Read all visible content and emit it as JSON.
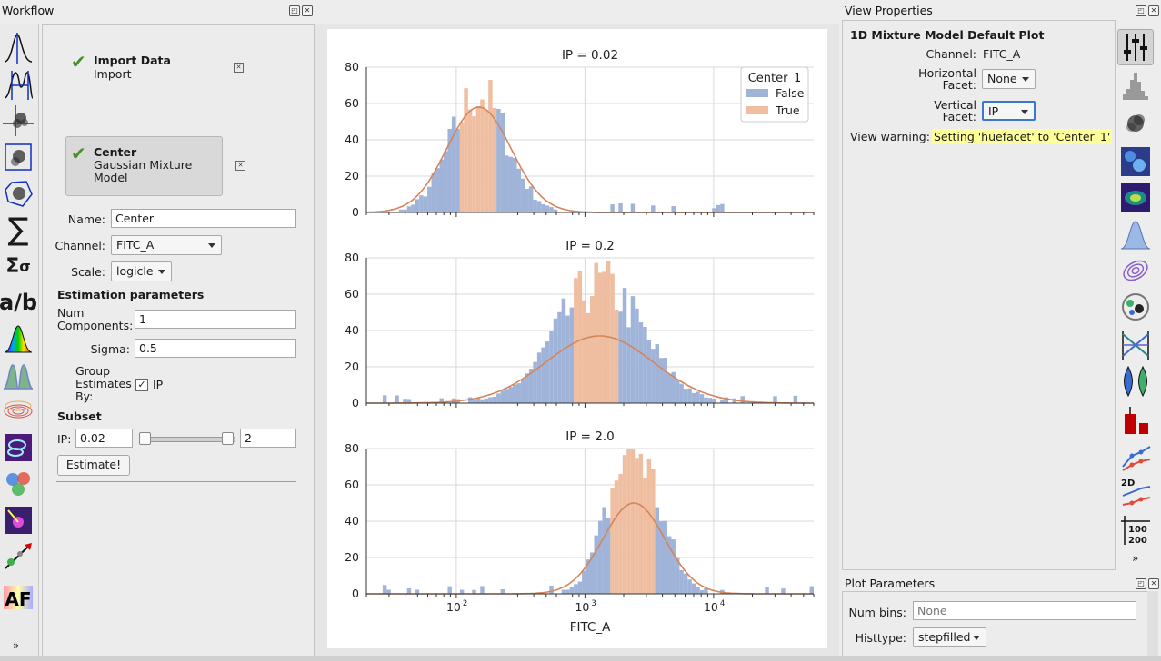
{
  "workflow": {
    "title": "Workflow",
    "items": [
      {
        "title": "Import Data",
        "subtitle": "Import"
      },
      {
        "title": "Center",
        "subtitle": "Gaussian Mixture Model"
      }
    ],
    "form": {
      "name_label": "Name:",
      "name_value": "Center",
      "channel_label": "Channel:",
      "channel_value": "FITC_A",
      "scale_label": "Scale:",
      "scale_value": "logicle",
      "estimation_header": "Estimation parameters",
      "num_components_label": "Num Components:",
      "num_components_value": "1",
      "sigma_label": "Sigma:",
      "sigma_value": "0.5",
      "group_label": "Group Estimates By:",
      "group_check": "✓",
      "group_value": "IP",
      "subset_header": "Subset",
      "ip_label": "IP:",
      "ip_min": "0.02",
      "ip_max": "2",
      "estimate_button": "Estimate!"
    },
    "toolbar_more": "»"
  },
  "plot": {
    "panels": [
      "IP = 0.02",
      "IP = 0.2",
      "IP = 2.0"
    ],
    "xlabel": "FITC_A",
    "legend": {
      "title": "Center_1",
      "items": [
        {
          "label": "False",
          "color": "#9fb4d8"
        },
        {
          "label": "True",
          "color": "#efbda0"
        }
      ]
    },
    "curve_color": "#d6845a"
  },
  "chart_data": {
    "type": "bar",
    "xscale": "log",
    "xlim": [
      20,
      60000
    ],
    "ylim": [
      0,
      80
    ],
    "yticks": [
      0,
      20,
      40,
      60,
      80
    ],
    "xticks": [
      "10^2",
      "10^3",
      "10^4"
    ],
    "series": [
      {
        "panel": "IP = 0.02",
        "peak": 150,
        "true_range": [
          110,
          210
        ],
        "max": 65
      },
      {
        "panel": "IP = 0.2",
        "peak": 1300,
        "true_range": [
          800,
          1800
        ],
        "max": 65
      },
      {
        "panel": "IP = 2.0",
        "peak": 2400,
        "true_range": [
          1600,
          3600
        ],
        "max": 80
      }
    ]
  },
  "view_properties": {
    "title": "View Properties",
    "header": "1D Mixture Model Default Plot",
    "channel_label": "Channel:",
    "channel_value": "FITC_A",
    "hfacet_label": "Horizontal Facet:",
    "hfacet_value": "None",
    "vfacet_label": "Vertical Facet:",
    "vfacet_value": "IP",
    "warning_label": "View warning:",
    "warning_value": "Setting 'huefacet' to 'Center_1'"
  },
  "plot_parameters": {
    "title": "Plot Parameters",
    "numbins_label": "Num bins:",
    "numbins_placeholder": "None",
    "histtype_label": "Histtype:",
    "histtype_value": "stepfilled"
  }
}
